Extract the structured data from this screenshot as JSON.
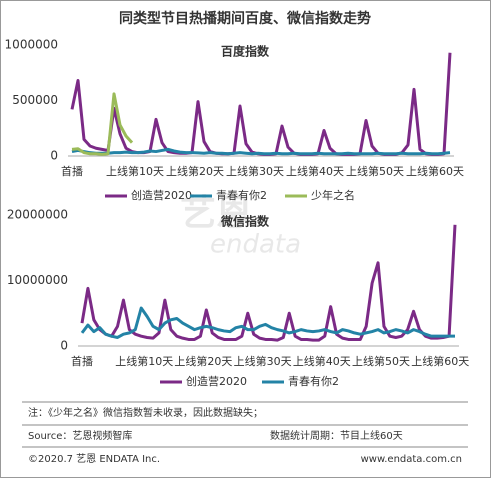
{
  "header": {
    "title": "同类型节目热播期间百度、微信指数走势"
  },
  "watermark": {
    "brand": "艺恩",
    "word": "endata"
  },
  "chart_data": [
    {
      "type": "line",
      "title": "百度指数",
      "categories": [
        "首播",
        null,
        null,
        null,
        null,
        null,
        null,
        null,
        null,
        null,
        "上线第10天",
        null,
        null,
        null,
        null,
        null,
        null,
        null,
        null,
        null,
        "上线第20天",
        null,
        null,
        null,
        null,
        null,
        null,
        null,
        null,
        null,
        "上线第30天",
        null,
        null,
        null,
        null,
        null,
        null,
        null,
        null,
        null,
        "上线第40天",
        null,
        null,
        null,
        null,
        null,
        null,
        null,
        null,
        null,
        "上线第50天",
        null,
        null,
        null,
        null,
        null,
        null,
        null,
        null,
        null,
        "上线第60天",
        null,
        null,
        null
      ],
      "ylim": [
        0,
        1000000
      ],
      "yticks": [
        0,
        500000,
        1000000
      ],
      "series": [
        {
          "name": "创造营2020",
          "color": "#7b2a86",
          "values": [
            420000,
            680000,
            150000,
            90000,
            70000,
            60000,
            50000,
            430000,
            200000,
            70000,
            40000,
            30000,
            30000,
            40000,
            330000,
            120000,
            40000,
            30000,
            25000,
            25000,
            30000,
            490000,
            130000,
            40000,
            25000,
            20000,
            20000,
            25000,
            450000,
            110000,
            35000,
            20000,
            15000,
            15000,
            20000,
            270000,
            80000,
            25000,
            15000,
            15000,
            15000,
            20000,
            230000,
            70000,
            20000,
            15000,
            15000,
            15000,
            20000,
            320000,
            90000,
            25000,
            15000,
            15000,
            15000,
            30000,
            100000,
            600000,
            60000,
            20000,
            15000,
            15000,
            20000,
            930000
          ]
        },
        {
          "name": "青春有你2",
          "color": "#2383a6",
          "values": [
            40000,
            50000,
            40000,
            30000,
            25000,
            25000,
            25000,
            30000,
            30000,
            35000,
            30000,
            30000,
            35000,
            45000,
            40000,
            50000,
            60000,
            45000,
            35000,
            30000,
            30000,
            28000,
            25000,
            30000,
            25000,
            25000,
            20000,
            25000,
            30000,
            25000,
            20000,
            25000,
            20000,
            20000,
            25000,
            20000,
            20000,
            25000,
            20000,
            20000,
            20000,
            25000,
            20000,
            20000,
            20000,
            20000,
            25000,
            20000,
            20000,
            20000,
            20000,
            25000,
            20000,
            20000,
            20000,
            25000,
            20000,
            20000,
            20000,
            25000,
            20000,
            20000,
            25000,
            30000
          ]
        },
        {
          "name": "少年之名",
          "color": "#9bbb59",
          "values": [
            60000,
            65000,
            30000,
            20000,
            20000,
            15000,
            20000,
            560000,
            280000,
            180000,
            120000,
            null,
            null,
            null,
            null,
            null,
            null,
            null,
            null,
            null,
            null,
            null,
            null,
            null,
            null,
            null,
            null,
            null,
            null,
            null,
            null,
            null,
            null,
            null,
            null,
            null,
            null,
            null,
            null,
            null,
            null,
            null,
            null,
            null,
            null,
            null,
            null,
            null,
            null,
            null,
            null,
            null,
            null,
            null,
            null,
            null,
            null,
            null,
            null,
            null,
            null,
            null,
            null,
            null
          ]
        }
      ]
    },
    {
      "type": "line",
      "title": "微信指数",
      "categories": [
        "首播",
        null,
        null,
        null,
        null,
        null,
        null,
        null,
        null,
        null,
        "上线第10天",
        null,
        null,
        null,
        null,
        null,
        null,
        null,
        null,
        null,
        "上线第20天",
        null,
        null,
        null,
        null,
        null,
        null,
        null,
        null,
        null,
        "上线第30天",
        null,
        null,
        null,
        null,
        null,
        null,
        null,
        null,
        null,
        "上线第40天",
        null,
        null,
        null,
        null,
        null,
        null,
        null,
        null,
        null,
        "上线第50天",
        null,
        null,
        null,
        null,
        null,
        null,
        null,
        null,
        null,
        "上线第60天",
        null,
        null,
        null
      ],
      "ylim": [
        0,
        20000000
      ],
      "yticks": [
        0,
        10000000,
        20000000
      ],
      "series": [
        {
          "name": "创造营2020",
          "color": "#7b2a86",
          "values": [
            3500000,
            8800000,
            4000000,
            2500000,
            1800000,
            1500000,
            3000000,
            7000000,
            2500000,
            1800000,
            1500000,
            1300000,
            1200000,
            2000000,
            7000000,
            2500000,
            1500000,
            1200000,
            1000000,
            1000000,
            1500000,
            5500000,
            2000000,
            1300000,
            1000000,
            1000000,
            1000000,
            1500000,
            5000000,
            1800000,
            1200000,
            1000000,
            1000000,
            900000,
            1300000,
            5000000,
            1500000,
            1000000,
            1000000,
            900000,
            900000,
            1500000,
            6000000,
            1800000,
            1200000,
            1000000,
            1000000,
            1000000,
            3000000,
            9600000,
            12700000,
            3000000,
            1500000,
            1300000,
            1500000,
            2500000,
            5300000,
            2500000,
            1500000,
            1200000,
            1200000,
            1300000,
            1500000,
            18500000
          ]
        },
        {
          "name": "青春有你2",
          "color": "#2383a6",
          "values": [
            2000000,
            3200000,
            2200000,
            2800000,
            1800000,
            1500000,
            1300000,
            1800000,
            2000000,
            2500000,
            5800000,
            4500000,
            3000000,
            2500000,
            3500000,
            4000000,
            4200000,
            3500000,
            3000000,
            2500000,
            2800000,
            3000000,
            2800000,
            2500000,
            2300000,
            2200000,
            2800000,
            3000000,
            2500000,
            2500000,
            3000000,
            3300000,
            2800000,
            2500000,
            2300000,
            2000000,
            2200000,
            2500000,
            2300000,
            2200000,
            2300000,
            2500000,
            2200000,
            2000000,
            2500000,
            2300000,
            2000000,
            1800000,
            2000000,
            2200000,
            2500000,
            2000000,
            2200000,
            2500000,
            2300000,
            2000000,
            2500000,
            2200000,
            1800000,
            1500000,
            1500000,
            1500000,
            1500000,
            1500000
          ]
        }
      ]
    }
  ],
  "footer": {
    "note": "注：《少年之名》微信指数暂未收录，因此数据缺失；",
    "source": "Source：艺恩视频智库",
    "period": "数据统计周期：节目上线60天",
    "copyright": "©2020.7 艺恩 ENDATA Inc.",
    "website": "www.endata.com.cn"
  }
}
